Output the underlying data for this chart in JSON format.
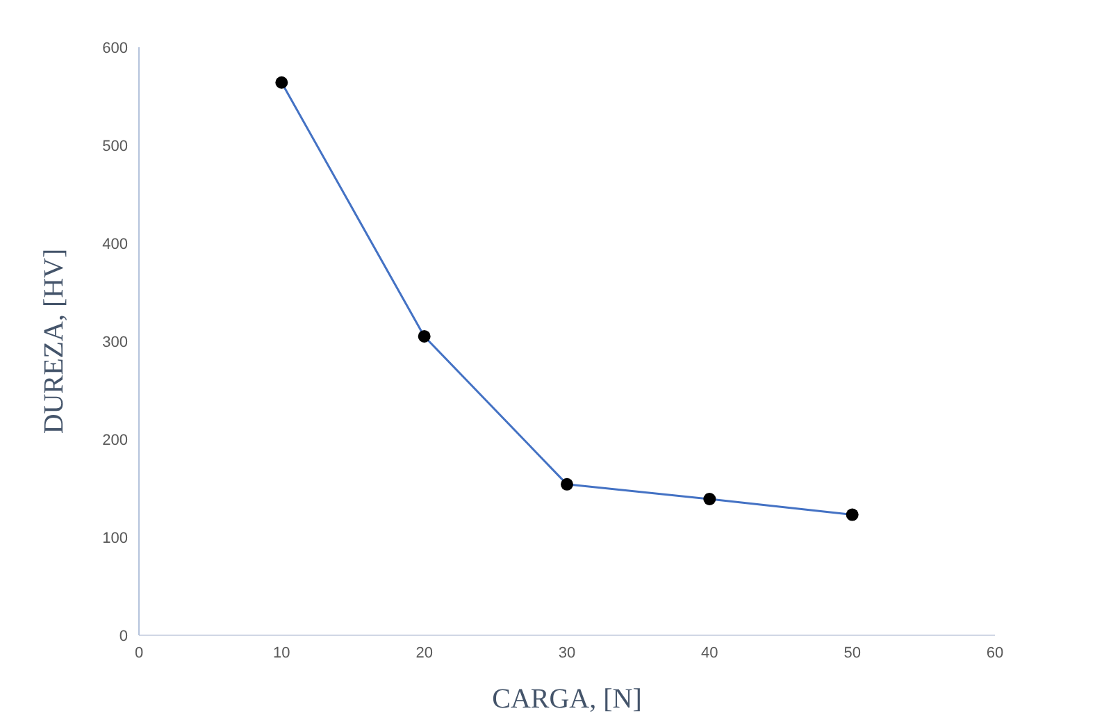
{
  "chart_data": {
    "type": "line",
    "xlabel": "CARGA, [N]",
    "ylabel": "DUREZA, [HV]",
    "x": [
      10,
      20,
      30,
      40,
      50
    ],
    "series": [
      {
        "color": "#4472c4",
        "values": [
          564,
          305,
          154,
          139,
          123
        ]
      }
    ],
    "xlim": [
      0,
      60
    ],
    "xticks": [
      0,
      10,
      20,
      30,
      40,
      50,
      60
    ],
    "ylim": [
      0,
      600
    ],
    "yticks": [
      0,
      100,
      200,
      300,
      400,
      500,
      600
    ],
    "grid": false,
    "legend": false,
    "marker": "circle",
    "line_style": "solid"
  }
}
